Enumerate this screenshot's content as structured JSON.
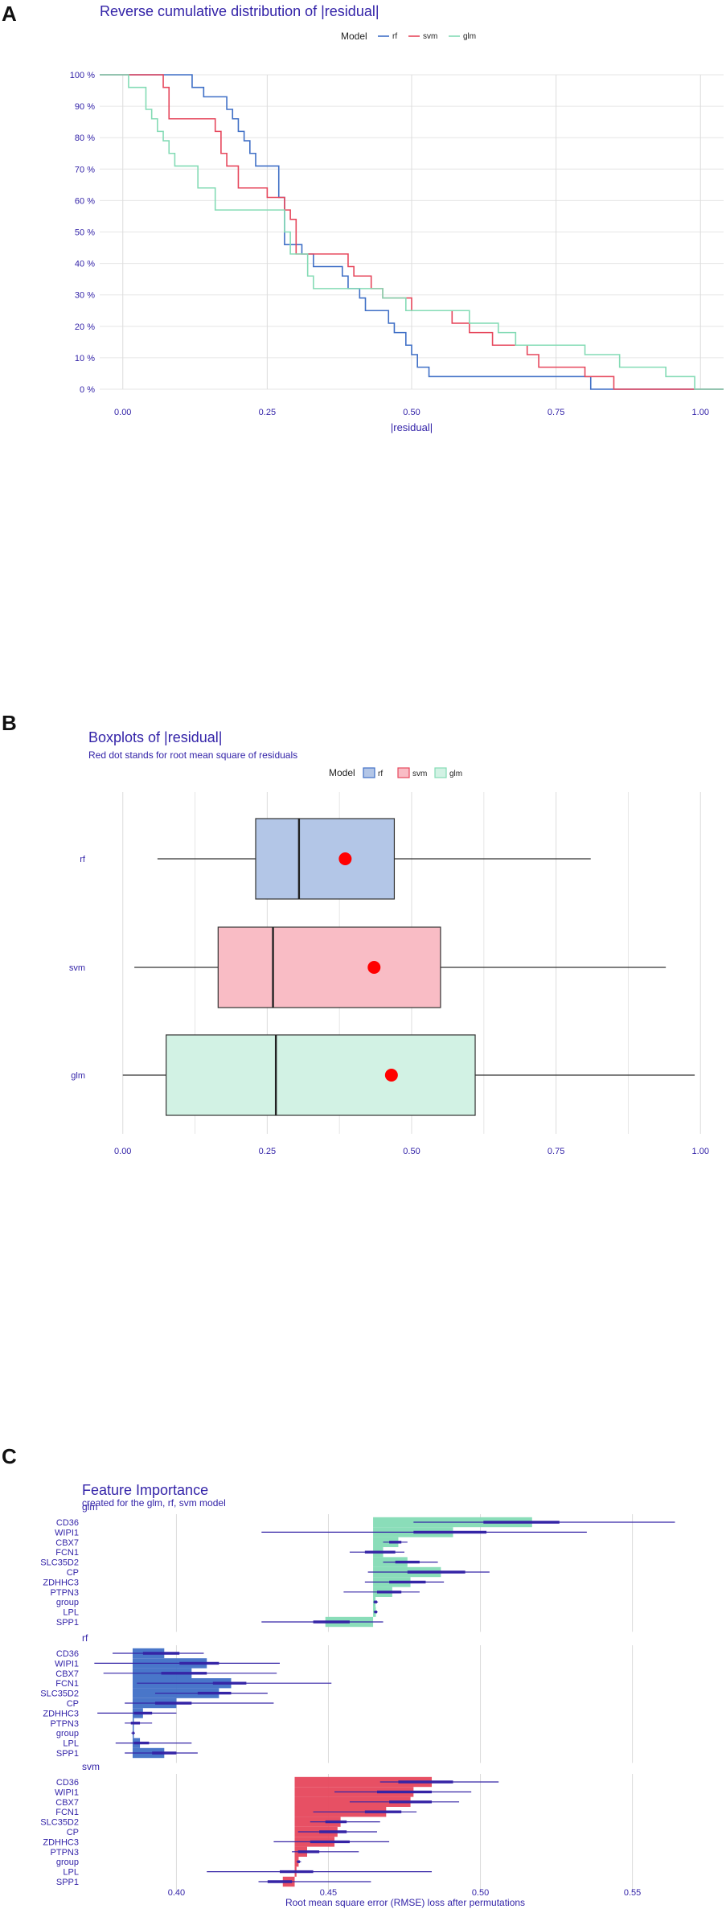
{
  "panels": {
    "a": {
      "letter": "A"
    },
    "b": {
      "letter": "B"
    },
    "c": {
      "letter": "C"
    }
  },
  "colors": {
    "rf": "#3f6fc6",
    "svm": "#e6475c",
    "glm": "#84dbb5",
    "rf_fill": "#b3c6e7",
    "svm_fill": "#f9bcc5",
    "glm_fill": "#d2f2e4",
    "rmse_dot": "#ff0000",
    "bar_line": "#3524a6",
    "title": "#3323a8"
  },
  "chart_data": [
    {
      "id": "ecdf",
      "type": "line",
      "title": "Reverse cumulative distribution of |residual|",
      "xlabel": "|residual|",
      "ylabel": "",
      "xlim": [
        -0.04,
        1.04
      ],
      "ylim": [
        0,
        100
      ],
      "x_ticks": [
        "0.00",
        "0.25",
        "0.50",
        "0.75",
        "1.00"
      ],
      "x_tick_values": [
        0,
        0.25,
        0.5,
        0.75,
        1.0
      ],
      "y_ticks": [
        "0 %",
        "10 %",
        "20 %",
        "30 %",
        "40 %",
        "50 %",
        "60 %",
        "70 %",
        "80 %",
        "90 %",
        "100 %"
      ],
      "y_tick_values": [
        0,
        10,
        20,
        30,
        40,
        50,
        60,
        70,
        80,
        90,
        100
      ],
      "grid": true,
      "legend": {
        "title": "Model",
        "position": "top",
        "items": [
          "rf",
          "svm",
          "glm"
        ]
      },
      "series": [
        {
          "name": "rf",
          "x": [
            0.06,
            0.12,
            0.14,
            0.18,
            0.19,
            0.2,
            0.21,
            0.22,
            0.23,
            0.27,
            0.28,
            0.31,
            0.33,
            0.38,
            0.39,
            0.41,
            0.42,
            0.46,
            0.47,
            0.49,
            0.5,
            0.51,
            0.53,
            0.54,
            0.56,
            0.6,
            0.81,
            1.04
          ],
          "y": [
            100,
            96,
            93,
            89,
            86,
            82,
            79,
            75,
            71,
            61,
            46,
            43,
            39,
            36,
            32,
            29,
            25,
            21,
            18,
            14,
            11,
            7,
            4,
            4,
            4,
            4,
            0,
            0
          ]
        },
        {
          "name": "svm",
          "x": [
            0.02,
            0.07,
            0.08,
            0.16,
            0.17,
            0.18,
            0.2,
            0.25,
            0.28,
            0.29,
            0.3,
            0.39,
            0.4,
            0.43,
            0.45,
            0.5,
            0.57,
            0.6,
            0.64,
            0.7,
            0.72,
            0.8,
            0.85,
            0.94,
            1.04
          ],
          "y": [
            100,
            96,
            86,
            82,
            75,
            71,
            64,
            61,
            57,
            54,
            43,
            39,
            36,
            32,
            29,
            25,
            21,
            18,
            14,
            11,
            7,
            4,
            0,
            0,
            0
          ]
        },
        {
          "name": "glm",
          "x": [
            0.0,
            0.01,
            0.04,
            0.05,
            0.06,
            0.07,
            0.08,
            0.09,
            0.13,
            0.16,
            0.28,
            0.29,
            0.32,
            0.33,
            0.45,
            0.49,
            0.6,
            0.65,
            0.68,
            0.8,
            0.86,
            0.94,
            0.99,
            1.04
          ],
          "y": [
            100,
            96,
            89,
            86,
            82,
            79,
            75,
            71,
            64,
            57,
            50,
            43,
            36,
            32,
            29,
            25,
            21,
            18,
            14,
            11,
            7,
            4,
            0,
            0
          ]
        }
      ]
    },
    {
      "id": "boxplot",
      "type": "box",
      "title": "Boxplots of |residual|",
      "subtitle": "Red dot stands for root mean square of residuals",
      "xlim": [
        -0.04,
        1.04
      ],
      "x_ticks": [
        "0.00",
        "0.25",
        "0.50",
        "0.75",
        "1.00"
      ],
      "x_tick_values": [
        0,
        0.25,
        0.5,
        0.75,
        1.0
      ],
      "grid": true,
      "legend": {
        "title": "Model",
        "position": "top",
        "items": [
          "rf",
          "svm",
          "glm"
        ]
      },
      "categories": [
        "rf",
        "svm",
        "glm"
      ],
      "boxes": [
        {
          "name": "rf",
          "min": 0.06,
          "q1": 0.23,
          "median": 0.305,
          "q3": 0.47,
          "max": 0.81,
          "rmse": 0.385
        },
        {
          "name": "svm",
          "min": 0.02,
          "q1": 0.165,
          "median": 0.26,
          "q3": 0.55,
          "max": 0.94,
          "rmse": 0.435
        },
        {
          "name": "glm",
          "min": 0.0,
          "q1": 0.075,
          "median": 0.265,
          "q3": 0.61,
          "max": 0.99,
          "rmse": 0.465
        }
      ]
    },
    {
      "id": "importance",
      "type": "bar",
      "title": "Feature Importance",
      "subtitle": "created for the glm, rf, svm model",
      "xlabel": "Root mean square error (RMSE) loss after permutations",
      "xlim": [
        0.37,
        0.58
      ],
      "x_ticks": [
        "0.40",
        "0.45",
        "0.50",
        "0.55"
      ],
      "x_tick_values": [
        0.4,
        0.45,
        0.5,
        0.55
      ],
      "grid": true,
      "features": [
        "CD36",
        "WIPI1",
        "CBX7",
        "FCN1",
        "SLC35D2",
        "CP",
        "ZDHHC3",
        "PTPN3",
        "group",
        "LPL",
        "SPP1"
      ],
      "facets": [
        {
          "name": "glm",
          "baseline": 0.4647,
          "values": [
            0.517,
            0.491,
            0.473,
            0.468,
            0.476,
            0.487,
            0.477,
            0.471,
            0.4655,
            0.4656,
            0.449
          ],
          "lo": [
            0.478,
            0.428,
            0.468,
            0.457,
            0.468,
            0.463,
            0.462,
            0.455,
            0.4648,
            0.4649,
            0.428
          ],
          "hi": [
            0.564,
            0.535,
            0.476,
            0.475,
            0.486,
            0.503,
            0.488,
            0.48,
            0.4663,
            0.4662,
            0.468
          ],
          "q_lo": [
            0.501,
            0.478,
            0.47,
            0.462,
            0.472,
            0.476,
            0.47,
            0.466,
            0.465,
            0.4651,
            0.445
          ],
          "q_hi": [
            0.526,
            0.502,
            0.474,
            0.472,
            0.48,
            0.495,
            0.482,
            0.474,
            0.466,
            0.466,
            0.457
          ]
        },
        {
          "name": "rf",
          "baseline": 0.3856,
          "values": [
            0.396,
            0.41,
            0.405,
            0.418,
            0.414,
            0.4,
            0.389,
            0.386,
            0.3858,
            0.388,
            0.396
          ],
          "lo": [
            0.379,
            0.373,
            0.376,
            0.387,
            0.393,
            0.383,
            0.374,
            0.383,
            0.3852,
            0.38,
            0.383
          ],
          "hi": [
            0.409,
            0.434,
            0.433,
            0.451,
            0.43,
            0.432,
            0.4,
            0.392,
            0.3864,
            0.405,
            0.407
          ],
          "q_lo": [
            0.389,
            0.401,
            0.395,
            0.412,
            0.407,
            0.393,
            0.386,
            0.385,
            0.3855,
            0.386,
            0.392
          ],
          "q_hi": [
            0.401,
            0.414,
            0.41,
            0.423,
            0.418,
            0.405,
            0.392,
            0.388,
            0.3861,
            0.391,
            0.4
          ]
        },
        {
          "name": "svm",
          "baseline": 0.4389,
          "values": [
            0.484,
            0.478,
            0.477,
            0.469,
            0.454,
            0.453,
            0.452,
            0.443,
            0.4402,
            0.4395,
            0.435
          ],
          "lo": [
            0.467,
            0.452,
            0.457,
            0.445,
            0.444,
            0.44,
            0.432,
            0.438,
            0.4395,
            0.41,
            0.427
          ],
          "hi": [
            0.506,
            0.497,
            0.493,
            0.479,
            0.467,
            0.466,
            0.47,
            0.46,
            0.441,
            0.484,
            0.464
          ],
          "q_lo": [
            0.473,
            0.466,
            0.47,
            0.462,
            0.449,
            0.447,
            0.444,
            0.44,
            0.4398,
            0.434,
            0.43
          ],
          "q_hi": [
            0.491,
            0.484,
            0.484,
            0.474,
            0.456,
            0.456,
            0.457,
            0.447,
            0.4406,
            0.445,
            0.438
          ]
        }
      ]
    }
  ]
}
